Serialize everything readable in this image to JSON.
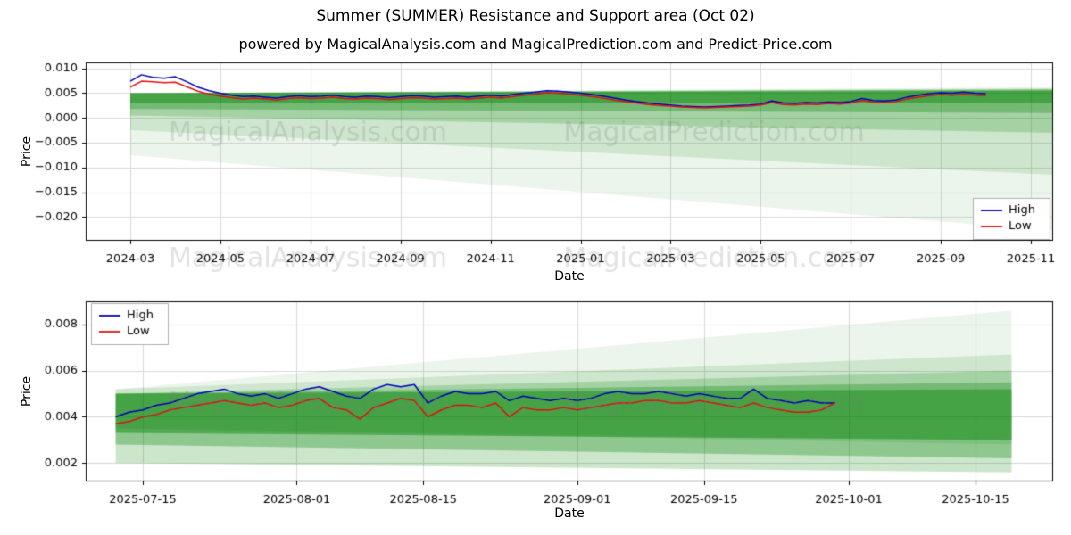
{
  "page": {
    "title": "Summer (SUMMER) Resistance and Support area (Oct 02)",
    "subtitle": "powered by MagicalAnalysis.com and MagicalPrediction.com and Predict-Price.com"
  },
  "watermarks": [
    "MagicalAnalysis.com",
    "MagicalPrediction.com"
  ],
  "chart_data": [
    {
      "type": "line",
      "name": "overview-chart",
      "title": "",
      "xlabel": "Date",
      "ylabel": "Price",
      "x_unit": "months since 2024-03",
      "ylim": [
        -0.0248,
        0.0112
      ],
      "grid": true,
      "legend_position": "right-bottom",
      "band_color": "#008000",
      "legend": [
        {
          "label": "High",
          "color": "#0000b8"
        },
        {
          "label": "Low",
          "color": "#e01010"
        }
      ],
      "xticks": [
        {
          "v": 0,
          "label": "2024-03"
        },
        {
          "v": 2,
          "label": "2024-05"
        },
        {
          "v": 4,
          "label": "2024-07"
        },
        {
          "v": 6,
          "label": "2024-09"
        },
        {
          "v": 8,
          "label": "2024-11"
        },
        {
          "v": 10,
          "label": "2025-01"
        },
        {
          "v": 12,
          "label": "2025-03"
        },
        {
          "v": 14,
          "label": "2025-05"
        },
        {
          "v": 16,
          "label": "2025-07"
        },
        {
          "v": 18,
          "label": "2025-09"
        },
        {
          "v": 20,
          "label": "2025-11"
        }
      ],
      "yticks": [
        {
          "v": 0.01,
          "label": "0.010"
        },
        {
          "v": 0.005,
          "label": "0.005"
        },
        {
          "v": 0.0,
          "label": "0.000"
        },
        {
          "v": -0.005,
          "label": "−0.005"
        },
        {
          "v": -0.01,
          "label": "−0.010"
        },
        {
          "v": -0.015,
          "label": "−0.015"
        },
        {
          "v": -0.02,
          "label": "−0.020"
        }
      ],
      "bands": [
        {
          "alpha": 0.42,
          "x": [
            0,
            20.5
          ],
          "top": [
            0.005,
            0.0055
          ],
          "bot": [
            0.003,
            0.003
          ]
        },
        {
          "alpha": 0.3,
          "x": [
            0,
            20.5
          ],
          "top": [
            0.005,
            0.0057
          ],
          "bot": [
            0.0018,
            0.001
          ]
        },
        {
          "alpha": 0.2,
          "x": [
            0,
            20.5
          ],
          "top": [
            0.005,
            0.0058
          ],
          "bot": [
            0.0005,
            -0.003
          ]
        },
        {
          "alpha": 0.13,
          "x": [
            0,
            20.5
          ],
          "top": [
            0.005,
            0.006
          ],
          "bot": [
            -0.0025,
            -0.0115
          ]
        },
        {
          "alpha": 0.08,
          "x": [
            0,
            20.5
          ],
          "top": [
            0.005,
            0.0062
          ],
          "bot": [
            -0.0075,
            -0.0228
          ]
        }
      ],
      "x": [
        0,
        0.25,
        0.5,
        0.75,
        1,
        1.25,
        1.5,
        1.75,
        2,
        2.25,
        2.5,
        2.75,
        3,
        3.25,
        3.5,
        3.75,
        4,
        4.25,
        4.5,
        4.75,
        5,
        5.25,
        5.5,
        5.75,
        6,
        6.25,
        6.5,
        6.75,
        7,
        7.25,
        7.5,
        7.75,
        8,
        8.25,
        8.5,
        8.75,
        9,
        9.25,
        9.5,
        9.75,
        10,
        10.25,
        10.5,
        10.75,
        11,
        11.25,
        11.5,
        11.75,
        12,
        12.25,
        12.5,
        12.75,
        13,
        13.25,
        13.5,
        13.75,
        14,
        14.25,
        14.5,
        14.75,
        15,
        15.25,
        15.5,
        15.75,
        16,
        16.25,
        16.5,
        16.75,
        17,
        17.25,
        17.5,
        17.75,
        18,
        18.25,
        18.5,
        18.75,
        19
      ],
      "series": [
        {
          "name": "High",
          "color": "#0000b8",
          "values": [
            0.0074,
            0.0087,
            0.0082,
            0.008,
            0.0083,
            0.0073,
            0.0062,
            0.0055,
            0.005,
            0.0046,
            0.0043,
            0.0044,
            0.0042,
            0.004,
            0.0043,
            0.0045,
            0.0043,
            0.0044,
            0.0046,
            0.0043,
            0.0042,
            0.0044,
            0.0043,
            0.0041,
            0.0043,
            0.0045,
            0.0044,
            0.0042,
            0.0043,
            0.0044,
            0.0042,
            0.0044,
            0.0046,
            0.0044,
            0.0047,
            0.005,
            0.0052,
            0.0055,
            0.0054,
            0.0052,
            0.005,
            0.0047,
            0.0044,
            0.004,
            0.0036,
            0.0033,
            0.003,
            0.0028,
            0.0026,
            0.0024,
            0.0023,
            0.0022,
            0.0023,
            0.0024,
            0.0025,
            0.0026,
            0.0028,
            0.0034,
            0.003,
            0.0029,
            0.0031,
            0.003,
            0.0032,
            0.0031,
            0.0033,
            0.0039,
            0.0035,
            0.0034,
            0.0036,
            0.0042,
            0.0046,
            0.0049,
            0.0051,
            0.005,
            0.0052,
            0.005,
            0.0049
          ]
        },
        {
          "name": "Low",
          "color": "#e01010",
          "values": [
            0.0062,
            0.0074,
            0.0073,
            0.0071,
            0.0072,
            0.0063,
            0.0054,
            0.0048,
            0.0044,
            0.0041,
            0.0038,
            0.004,
            0.0038,
            0.0036,
            0.0039,
            0.0041,
            0.0039,
            0.004,
            0.0042,
            0.0039,
            0.0038,
            0.004,
            0.0039,
            0.0037,
            0.0039,
            0.0041,
            0.004,
            0.0038,
            0.0039,
            0.004,
            0.0038,
            0.004,
            0.0042,
            0.004,
            0.0043,
            0.0046,
            0.0048,
            0.0051,
            0.005,
            0.0048,
            0.0046,
            0.0043,
            0.004,
            0.0036,
            0.0033,
            0.003,
            0.0027,
            0.0025,
            0.0024,
            0.0022,
            0.0021,
            0.002,
            0.0021,
            0.0022,
            0.0023,
            0.0024,
            0.0026,
            0.0031,
            0.0027,
            0.0026,
            0.0028,
            0.0027,
            0.0029,
            0.0028,
            0.003,
            0.0035,
            0.0032,
            0.0031,
            0.0033,
            0.0038,
            0.0042,
            0.0045,
            0.0047,
            0.0046,
            0.0048,
            0.0046,
            0.0045
          ]
        }
      ]
    },
    {
      "type": "line",
      "name": "recent-detail-chart",
      "title": "",
      "xlabel": "Date",
      "ylabel": "Price",
      "x_unit": "days since 2025-07-12",
      "ylim": [
        0.0012,
        0.009
      ],
      "grid": true,
      "legend_position": "top-left",
      "band_color": "#008000",
      "legend": [
        {
          "label": "High",
          "color": "#0000b8"
        },
        {
          "label": "Low",
          "color": "#e01010"
        }
      ],
      "xticks": [
        {
          "v": 3,
          "label": "2025-07-15"
        },
        {
          "v": 20,
          "label": "2025-08-01"
        },
        {
          "v": 34,
          "label": "2025-08-15"
        },
        {
          "v": 51,
          "label": "2025-09-01"
        },
        {
          "v": 65,
          "label": "2025-09-15"
        },
        {
          "v": 81,
          "label": "2025-10-01"
        },
        {
          "v": 95,
          "label": "2025-10-15"
        }
      ],
      "yticks": [
        {
          "v": 0.002,
          "label": "0.002"
        },
        {
          "v": 0.004,
          "label": "0.004"
        },
        {
          "v": 0.006,
          "label": "0.006"
        },
        {
          "v": 0.008,
          "label": "0.008"
        }
      ],
      "bands": [
        {
          "alpha": 0.42,
          "x": [
            0,
            99
          ],
          "top": [
            0.005,
            0.0052
          ],
          "bot": [
            0.0033,
            0.003
          ]
        },
        {
          "alpha": 0.3,
          "x": [
            0,
            99
          ],
          "top": [
            0.005,
            0.0055
          ],
          "bot": [
            0.0028,
            0.0022
          ]
        },
        {
          "alpha": 0.2,
          "x": [
            0,
            99
          ],
          "top": [
            0.005,
            0.006
          ],
          "bot": [
            0.002,
            0.0016
          ]
        },
        {
          "alpha": 0.13,
          "x": [
            0,
            99
          ],
          "top": [
            0.0052,
            0.0067
          ],
          "bot": [
            0.0035,
            0.0028
          ]
        },
        {
          "alpha": 0.08,
          "x": [
            0,
            99
          ],
          "top": [
            0.0052,
            0.0086
          ],
          "bot": [
            0.0035,
            0.003
          ]
        }
      ],
      "x": [
        0,
        1.5,
        3,
        4.5,
        6,
        7.5,
        9,
        10.5,
        12,
        13.5,
        15,
        16.5,
        18,
        19.5,
        21,
        22.5,
        24,
        25.5,
        27,
        28.5,
        30,
        31.5,
        33,
        34.5,
        36,
        37.5,
        39,
        40.5,
        42,
        43.5,
        45,
        46.5,
        48,
        49.5,
        51,
        52.5,
        54,
        55.5,
        57,
        58.5,
        60,
        61.5,
        63,
        64.5,
        66,
        67.5,
        69,
        70.5,
        72,
        73.5,
        75,
        76.5,
        78,
        79.5
      ],
      "series": [
        {
          "name": "High",
          "color": "#0000b8",
          "values": [
            0.004,
            0.0042,
            0.0043,
            0.0045,
            0.0046,
            0.0048,
            0.005,
            0.0051,
            0.0052,
            0.005,
            0.0049,
            0.005,
            0.0048,
            0.005,
            0.0052,
            0.0053,
            0.0051,
            0.0049,
            0.0048,
            0.0052,
            0.0054,
            0.0053,
            0.0054,
            0.0046,
            0.0049,
            0.0051,
            0.005,
            0.005,
            0.0051,
            0.0047,
            0.0049,
            0.0048,
            0.0047,
            0.0048,
            0.0047,
            0.0048,
            0.005,
            0.0051,
            0.005,
            0.005,
            0.0051,
            0.005,
            0.0049,
            0.005,
            0.0049,
            0.0048,
            0.0048,
            0.0052,
            0.0048,
            0.0047,
            0.0046,
            0.0047,
            0.0046,
            0.0046
          ]
        },
        {
          "name": "Low",
          "color": "#e01010",
          "values": [
            0.0037,
            0.0038,
            0.004,
            0.0041,
            0.0043,
            0.0044,
            0.0045,
            0.0046,
            0.0047,
            0.0046,
            0.0045,
            0.0046,
            0.0044,
            0.0045,
            0.0047,
            0.0048,
            0.0044,
            0.0043,
            0.0039,
            0.0044,
            0.0046,
            0.0048,
            0.0047,
            0.004,
            0.0043,
            0.0045,
            0.0045,
            0.0044,
            0.0046,
            0.004,
            0.0044,
            0.0043,
            0.0043,
            0.0044,
            0.0043,
            0.0044,
            0.0045,
            0.0046,
            0.0046,
            0.0047,
            0.0047,
            0.0046,
            0.0046,
            0.0047,
            0.0046,
            0.0045,
            0.0044,
            0.0046,
            0.0044,
            0.0043,
            0.0042,
            0.0042,
            0.0043,
            0.0046
          ]
        }
      ]
    }
  ]
}
